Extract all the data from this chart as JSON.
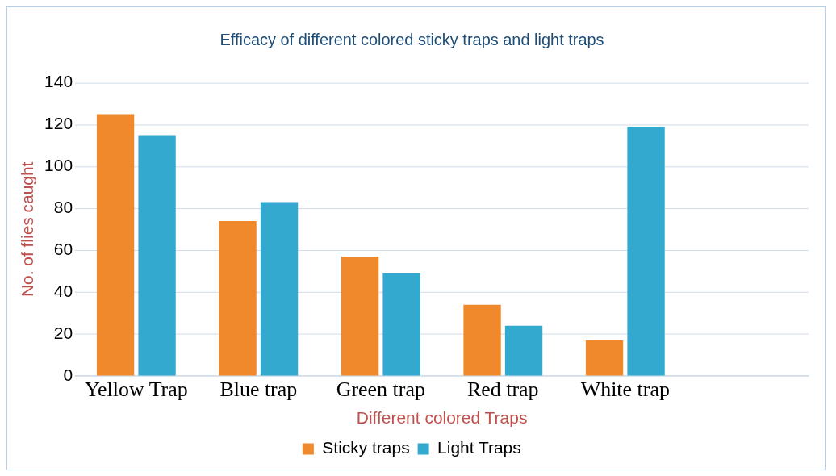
{
  "chart_data": {
    "type": "bar",
    "title": "Efficacy of different colored sticky traps and light traps",
    "xlabel": "Different colored Traps",
    "ylabel": "No. of flies caught",
    "categories": [
      "Yellow Trap",
      "Blue trap",
      "Green trap",
      "Red trap",
      "White trap",
      null
    ],
    "series": [
      {
        "name": "Sticky traps",
        "color": "#f0882c",
        "values": [
          125,
          74,
          57,
          34,
          17,
          null
        ]
      },
      {
        "name": "Light Traps",
        "color": "#33a9cf",
        "values": [
          115,
          83,
          49,
          24,
          119,
          null
        ]
      }
    ],
    "ylim": [
      0,
      140
    ],
    "yticks": [
      0,
      20,
      40,
      60,
      80,
      100,
      120,
      140
    ],
    "grid": "y",
    "legend": "bottom"
  }
}
